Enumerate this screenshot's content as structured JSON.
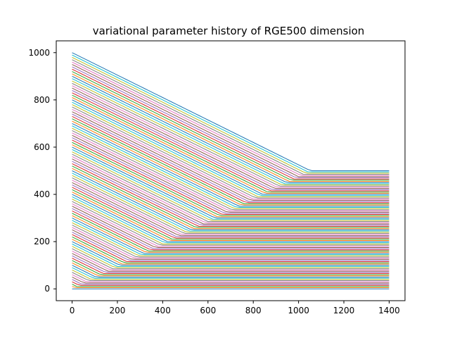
{
  "chart_data": {
    "type": "line",
    "title": "variational parameter history of RGE500 dimension",
    "xlabel": "",
    "ylabel": "",
    "xlim": [
      -70,
      1470
    ],
    "ylim": [
      -50,
      1050
    ],
    "x_ticks": [
      0,
      200,
      400,
      600,
      800,
      1000,
      1200,
      1400
    ],
    "y_ticks": [
      0,
      200,
      400,
      600,
      800,
      1000
    ],
    "grid": false,
    "legend": "none",
    "series_count": 101,
    "series_rule": "value(t, k) = max(start_k - t * 0.475, target_k); start_k from 0 to 1000, target_k from 0 to 500; lines drawn for t in [0, 1400]",
    "series_endpoints": {
      "start_min": 0,
      "start_max": 1000,
      "target_min": 0,
      "target_max": 500,
      "t_min": 0,
      "t_max": 1400
    },
    "colors": [
      "#1f77b4",
      "#ff7f0e",
      "#2ca02c",
      "#d62728",
      "#9467bd",
      "#8c564b",
      "#e377c2",
      "#7f7f7f",
      "#bcbd22",
      "#17becf"
    ]
  }
}
